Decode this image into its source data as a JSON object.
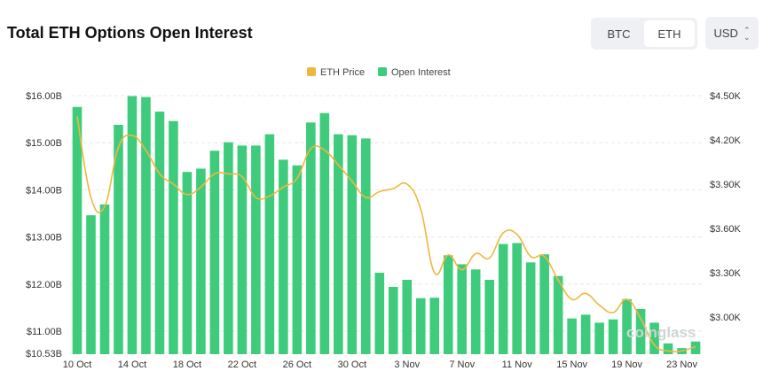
{
  "header": {
    "title": "Total ETH Options Open Interest",
    "coin_toggle": [
      "BTC",
      "ETH"
    ],
    "selected_coin": "ETH",
    "currency": "USD"
  },
  "watermark": "coinglass",
  "chart_data": {
    "type": "bar",
    "title": "Total ETH Options Open Interest",
    "categories": [
      "10 Oct",
      "11 Oct",
      "12 Oct",
      "13 Oct",
      "14 Oct",
      "15 Oct",
      "16 Oct",
      "17 Oct",
      "18 Oct",
      "19 Oct",
      "20 Oct",
      "21 Oct",
      "22 Oct",
      "23 Oct",
      "24 Oct",
      "25 Oct",
      "26 Oct",
      "27 Oct",
      "28 Oct",
      "29 Oct",
      "30 Oct",
      "31 Oct",
      "1 Nov",
      "2 Nov",
      "3 Nov",
      "4 Nov",
      "5 Nov",
      "6 Nov",
      "7 Nov",
      "8 Nov",
      "9 Nov",
      "10 Nov",
      "11 Nov",
      "12 Nov",
      "13 Nov",
      "14 Nov",
      "15 Nov",
      "16 Nov",
      "17 Nov",
      "18 Nov",
      "19 Nov",
      "20 Nov",
      "21 Nov",
      "22 Nov",
      "23 Nov",
      "24 Nov"
    ],
    "x_tick_labels": [
      "10 Oct",
      "14 Oct",
      "18 Oct",
      "22 Oct",
      "26 Oct",
      "30 Oct",
      "3 Nov",
      "7 Nov",
      "11 Nov",
      "15 Nov",
      "19 Nov",
      "23 Nov"
    ],
    "series": [
      {
        "name": "Open Interest",
        "type": "bar",
        "axis": "left",
        "color": "#3ecc7c",
        "unit": "B USD",
        "values": [
          15.76,
          13.46,
          13.69,
          15.38,
          15.99,
          15.97,
          15.66,
          15.46,
          14.38,
          14.45,
          14.83,
          15.01,
          14.94,
          14.94,
          15.18,
          14.64,
          14.52,
          15.43,
          15.63,
          15.18,
          15.16,
          15.09,
          12.24,
          11.94,
          12.09,
          11.7,
          11.71,
          12.61,
          12.42,
          12.31,
          12.09,
          12.85,
          12.87,
          12.46,
          12.63,
          12.17,
          11.27,
          11.35,
          11.18,
          11.25,
          11.68,
          11.47,
          11.18,
          10.74,
          10.64,
          10.78
        ]
      },
      {
        "name": "ETH Price",
        "type": "line",
        "axis": "right",
        "color": "#f0b73e",
        "unit": "K USD",
        "values": [
          4.36,
          3.81,
          3.75,
          4.15,
          4.23,
          4.13,
          3.97,
          3.9,
          3.83,
          3.88,
          3.97,
          3.97,
          3.95,
          3.81,
          3.82,
          3.88,
          3.94,
          4.14,
          4.13,
          4.03,
          3.92,
          3.81,
          3.85,
          3.87,
          3.9,
          3.73,
          3.3,
          3.42,
          3.32,
          3.43,
          3.4,
          3.57,
          3.56,
          3.41,
          3.41,
          3.25,
          3.12,
          3.16,
          3.08,
          3.03,
          3.12,
          2.99,
          2.81,
          2.77,
          2.77,
          2.8
        ]
      }
    ],
    "left_axis": {
      "ticks": [
        "$16.00B",
        "$15.00B",
        "$14.00B",
        "$13.00B",
        "$12.00B",
        "$11.00B",
        "$10.53B"
      ],
      "tick_values": [
        16,
        15,
        14,
        13,
        12,
        11,
        10.53
      ],
      "ylim": [
        10.53,
        16
      ]
    },
    "right_axis": {
      "ticks": [
        "$4.50K",
        "$4.20K",
        "$3.90K",
        "$3.60K",
        "$3.30K",
        "$3.00K"
      ],
      "tick_values": [
        4.5,
        4.2,
        3.9,
        3.6,
        3.3,
        3.0
      ],
      "ylim": [
        2.754,
        4.5
      ]
    },
    "legend": {
      "position": "top-center",
      "items": [
        "ETH Price",
        "Open Interest"
      ]
    },
    "grid": true
  }
}
